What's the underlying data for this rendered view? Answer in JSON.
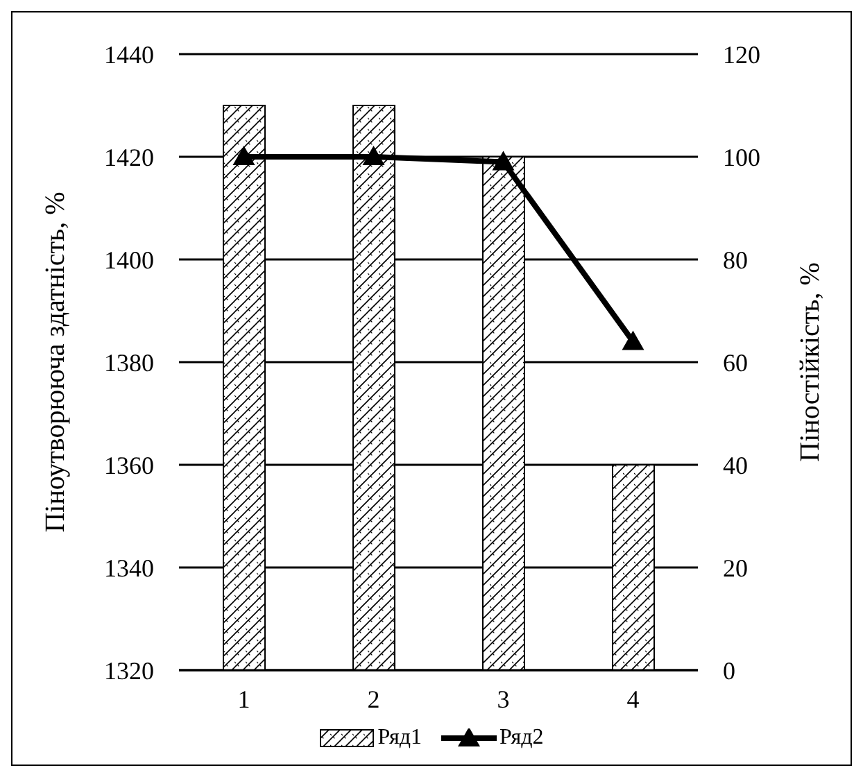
{
  "chart_data": {
    "type": "bar",
    "categories": [
      "1",
      "2",
      "3",
      "4"
    ],
    "ylabel": "Піноутворююча здатність, %",
    "y2label": "Піностійкість, %",
    "ylim": [
      1320,
      1440
    ],
    "yticks": [
      1320,
      1340,
      1360,
      1380,
      1400,
      1420,
      1440
    ],
    "y2lim": [
      0,
      120
    ],
    "y2ticks": [
      0,
      20,
      40,
      60,
      80,
      100,
      120
    ],
    "grid": "y",
    "legend": "bottom",
    "marker": "triangle",
    "line_style": "solid",
    "series": [
      {
        "name": "Ряд1",
        "color": "#000000",
        "values": [
          1430,
          1430,
          1420,
          1360
        ]
      },
      {
        "name": "Ряд2",
        "type": "line",
        "axis": "y2",
        "color": "#000000",
        "values": [
          100,
          100,
          99,
          64
        ]
      }
    ]
  }
}
